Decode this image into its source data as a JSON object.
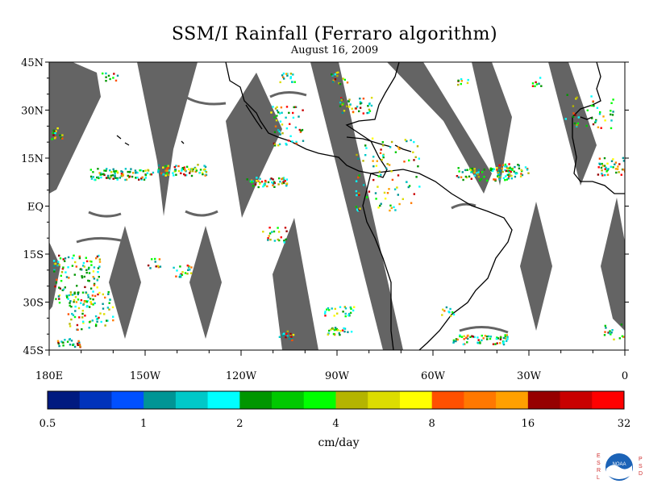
{
  "title": "SSM/I Rainfall (Ferraro algorithm)",
  "subtitle": "August 16, 2009",
  "map": {
    "lat_labels": [
      "45N",
      "30N",
      "15N",
      "EQ",
      "15S",
      "30S",
      "45S"
    ],
    "lat_values": [
      45,
      30,
      15,
      0,
      -15,
      -30,
      -45
    ],
    "lon_labels": [
      "180E",
      "150W",
      "120W",
      "90W",
      "60W",
      "30W",
      "0"
    ],
    "lon_values": [
      -180,
      -150,
      -120,
      -90,
      -60,
      -30,
      0
    ],
    "lon_range": [
      -180,
      0
    ],
    "lat_range": [
      -45,
      45
    ],
    "swath_gap_color": "#646464",
    "coastline_color": "#000000"
  },
  "colorbar": {
    "units": "cm/day",
    "tick_labels": [
      "0.5",
      "1",
      "2",
      "4",
      "8",
      "16",
      "32"
    ],
    "colors": [
      "#001a80",
      "#0033bb",
      "#0050ff",
      "#009595",
      "#00c8c8",
      "#00ffff",
      "#009600",
      "#00c800",
      "#00ff00",
      "#b4b400",
      "#dcdc00",
      "#ffff00",
      "#ff5000",
      "#ff7800",
      "#ffa000",
      "#960000",
      "#c80000",
      "#ff0000"
    ]
  },
  "logo": {
    "letters_left": [
      "E",
      "S",
      "R",
      "L"
    ],
    "letters_right": [
      "P",
      "S",
      "D"
    ],
    "center_text": "NOAA"
  }
}
